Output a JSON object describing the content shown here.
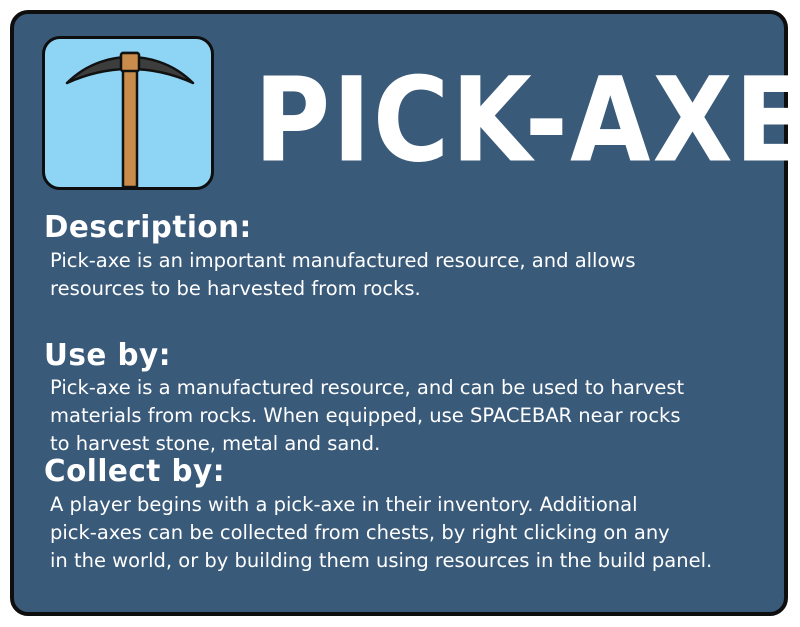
{
  "item": {
    "title": "PICK-AXE",
    "icon": "pickaxe-icon"
  },
  "colors": {
    "panel_background": "#3a5a7a",
    "panel_border": "#0e0e0e",
    "icon_background": "#8ed4f5",
    "text": "#ffffff",
    "pickaxe_head": "#3d3d3d",
    "pickaxe_handle": "#c98c4a"
  },
  "sections": {
    "description": {
      "heading": "Description:",
      "lines": [
        "Pick-axe is an important manufactured resource, and allows",
        "resources to be harvested from rocks."
      ]
    },
    "use_by": {
      "heading": "Use by:",
      "lines": [
        "Pick-axe is a manufactured resource, and can be used to harvest",
        "materials from rocks. When equipped, use SPACEBAR near rocks",
        "to harvest stone, metal and sand."
      ]
    },
    "collect_by": {
      "heading": "Collect by:",
      "lines": [
        "A player begins with a pick-axe in their inventory. Additional",
        "pick-axes can be collected from chests, by right clicking on any",
        "in the world, or by building them using resources in the build panel."
      ]
    }
  }
}
